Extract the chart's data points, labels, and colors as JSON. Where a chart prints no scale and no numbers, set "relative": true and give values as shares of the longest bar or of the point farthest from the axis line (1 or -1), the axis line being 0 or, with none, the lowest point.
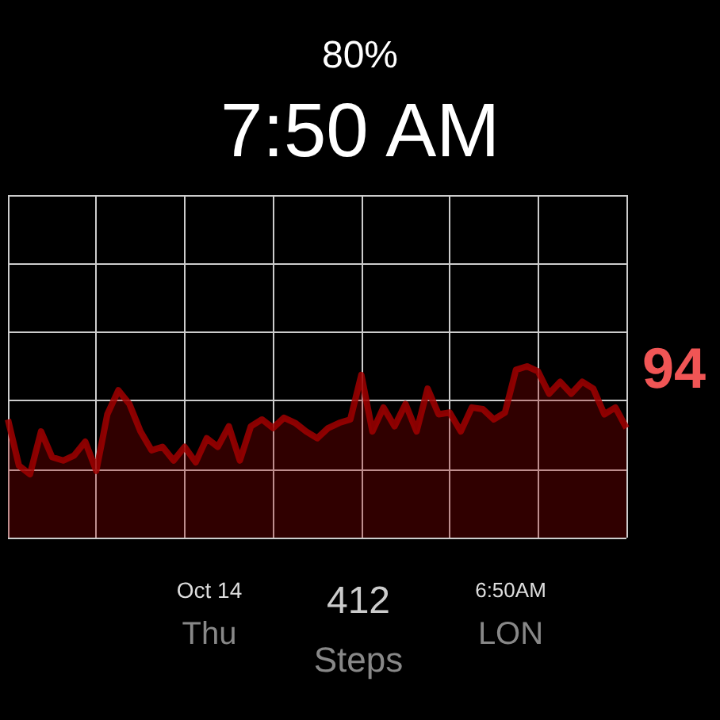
{
  "chart_data": {
    "type": "area",
    "title": "7:50 AM",
    "subtitle": "80%",
    "relative": true,
    "grid": true,
    "categories": [
      null,
      null,
      null,
      null,
      null,
      null,
      null,
      null,
      null,
      null,
      null,
      null,
      null,
      null,
      null,
      null,
      null,
      null,
      null,
      null,
      null,
      null,
      null,
      null,
      null,
      null,
      null,
      null,
      null,
      null,
      null,
      null,
      null,
      null,
      null,
      null,
      null,
      null,
      null,
      null,
      null,
      null,
      null,
      null,
      null,
      null,
      null,
      null,
      null,
      null,
      null,
      null,
      null,
      null,
      null,
      null,
      null
    ],
    "series": [
      {
        "color": "#a00000",
        "values": [
          0.69,
          0.42,
          0.37,
          0.62,
          0.47,
          0.45,
          0.48,
          0.56,
          0.39,
          0.72,
          0.86,
          0.78,
          0.62,
          0.51,
          0.53,
          0.45,
          0.53,
          0.44,
          0.58,
          0.53,
          0.65,
          0.45,
          0.65,
          0.69,
          0.64,
          0.7,
          0.67,
          0.62,
          0.58,
          0.64,
          0.67,
          0.69,
          0.95,
          0.62,
          0.76,
          0.65,
          0.78,
          0.62,
          0.87,
          0.72,
          0.73,
          0.62,
          0.76,
          0.75,
          0.69,
          0.73,
          0.98,
          1,
          0.97,
          0.84,
          0.91,
          0.84,
          0.91,
          0.87,
          0.72,
          0.76,
          0.64
        ]
      }
    ],
    "annotations": [
      "94",
      "Oct 14",
      "Thu",
      "412",
      "Steps",
      "6:50AM",
      "LON"
    ]
  }
}
